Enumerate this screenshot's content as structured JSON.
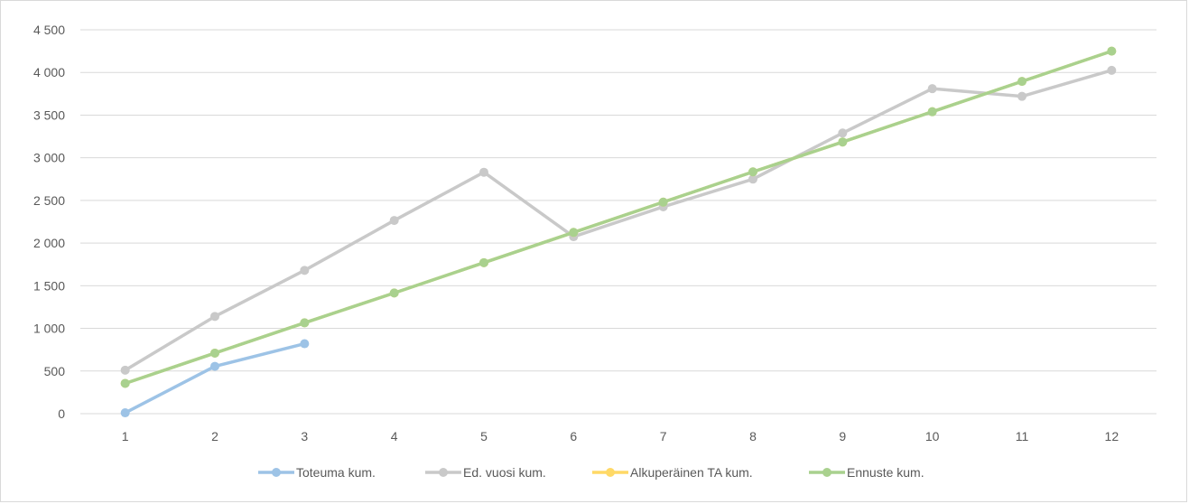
{
  "chart_data": {
    "type": "line",
    "title": "",
    "xlabel": "",
    "ylabel": "",
    "categories": [
      1,
      2,
      3,
      4,
      5,
      6,
      7,
      8,
      9,
      10,
      11,
      12
    ],
    "ylim": [
      0,
      4500
    ],
    "yticks": [
      0,
      500,
      1000,
      1500,
      2000,
      2500,
      3000,
      3500,
      4000,
      4500
    ],
    "ytick_labels": [
      "0",
      "500",
      "1 000",
      "1 500",
      "2 000",
      "2 500",
      "3 000",
      "3 500",
      "4 000",
      "4 500"
    ],
    "grid": true,
    "legend": "bottom",
    "series": [
      {
        "name": "Toteuma kum.",
        "color": "#9dc3e6",
        "values": [
          10,
          555,
          820,
          null,
          null,
          null,
          null,
          null,
          null,
          null,
          null,
          null
        ]
      },
      {
        "name": "Ed. vuosi kum.",
        "color": "#c9c9c9",
        "values": [
          510,
          1140,
          1680,
          2265,
          2830,
          2075,
          2425,
          2750,
          3290,
          3810,
          3720,
          4025
        ]
      },
      {
        "name": "Alkuperäinen TA kum.",
        "color": "#ffd966",
        "values": [
          355,
          710,
          1065,
          1415,
          1770,
          2125,
          2480,
          2835,
          3185,
          3540,
          3895,
          4250
        ]
      },
      {
        "name": "Ennuste kum.",
        "color": "#a9d18e",
        "values": [
          355,
          710,
          1065,
          1415,
          1770,
          2125,
          2480,
          2835,
          3185,
          3540,
          3895,
          4250
        ]
      }
    ]
  }
}
